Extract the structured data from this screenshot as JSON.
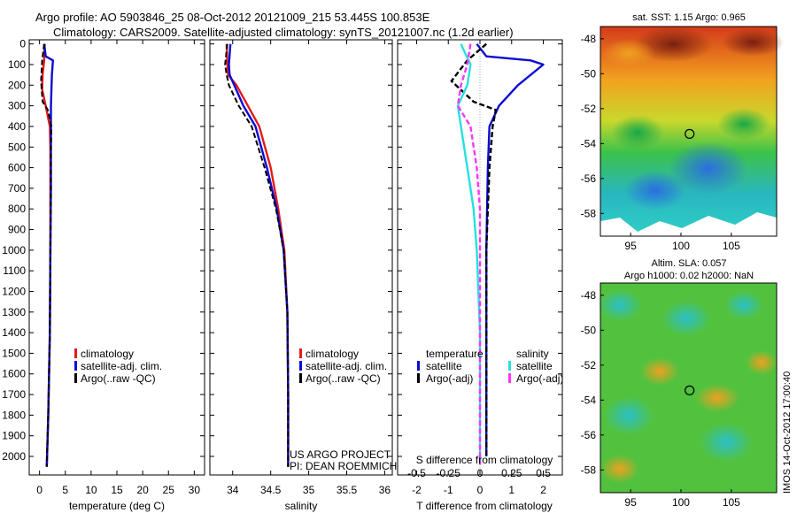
{
  "title_line1": "Argo profile: AO 5903846_25 08-Oct-2012 20121009_215 53.445S 100.853E",
  "title_line2": "Climatology: CARS2009. Satellite-adjusted climatology: synTS_20121007.nc (1.2d earlier)",
  "depth_ticks": [
    "0",
    "100",
    "200",
    "300",
    "400",
    "500",
    "600",
    "700",
    "800",
    "900",
    "1000",
    "1100",
    "1200",
    "1300",
    "1400",
    "1500",
    "1600",
    "1700",
    "1800",
    "1900",
    "2000"
  ],
  "colors": {
    "climatology": "#e41a1c",
    "satellite": "#0b0bd6",
    "argo": "#000000",
    "satellite_s": "#26e0e0",
    "argo_s": "#ff33ff"
  },
  "chart_data": [
    {
      "type": "line",
      "xlabel": "temperature (deg C)",
      "ylabel": "",
      "xlim": [
        -2,
        32
      ],
      "ylim": [
        2100,
        0
      ],
      "xticks": [
        "0",
        "5",
        "10",
        "15",
        "20",
        "25",
        "30"
      ],
      "legend": [
        "climatology",
        "satellite-adj. clim.",
        "Argo(..raw -QC)"
      ],
      "series": [
        {
          "name": "climatology",
          "x": [
            1.0,
            0.9,
            0.6,
            0.5,
            1.2,
            2.0,
            2.1,
            2.1,
            2.1,
            2.0,
            1.7,
            1.4
          ],
          "y": [
            0,
            80,
            150,
            220,
            300,
            400,
            500,
            700,
            1000,
            1400,
            1800,
            2050
          ]
        },
        {
          "name": "satellite-adj. clim.",
          "x": [
            0.9,
            1.2,
            2.6,
            2.4,
            2.2,
            2.2,
            2.2,
            2.2,
            2.1,
            2.0,
            1.7,
            1.4
          ],
          "y": [
            0,
            60,
            80,
            150,
            300,
            400,
            500,
            700,
            1000,
            1400,
            1800,
            2050
          ]
        },
        {
          "name": "Argo(..raw -QC)",
          "x": [
            0.9,
            0.5,
            0.3,
            0.6,
            1.6,
            2.3,
            2.2,
            2.2,
            2.1,
            2.0,
            1.7,
            1.4
          ],
          "y": [
            0,
            80,
            180,
            280,
            320,
            400,
            500,
            700,
            1000,
            1400,
            1800,
            2050
          ]
        }
      ]
    },
    {
      "type": "line",
      "xlabel": "salinity",
      "ylabel": "",
      "xlim": [
        33.7,
        36.1
      ],
      "ylim": [
        2100,
        0
      ],
      "xticks": [
        "34",
        "34.5",
        "35",
        "35.5",
        "36"
      ],
      "legend": [
        "climatology",
        "satellite-adj. clim.",
        "Argo(..raw -QC)"
      ],
      "annotation": [
        "US ARGO PROJECT",
        "PI: DEAN ROEMMICH"
      ],
      "series": [
        {
          "name": "climatology",
          "x": [
            33.92,
            33.93,
            33.94,
            34.05,
            34.2,
            34.35,
            34.5,
            34.6,
            34.68,
            34.72,
            34.73,
            34.73
          ],
          "y": [
            0,
            100,
            150,
            200,
            300,
            400,
            600,
            800,
            1000,
            1300,
            1700,
            2050
          ]
        },
        {
          "name": "satellite-adj. clim.",
          "x": [
            33.97,
            33.95,
            33.96,
            34.02,
            34.14,
            34.3,
            34.45,
            34.58,
            34.67,
            34.72,
            34.73,
            34.73
          ],
          "y": [
            0,
            100,
            150,
            200,
            300,
            400,
            600,
            800,
            1000,
            1300,
            1700,
            2050
          ]
        },
        {
          "name": "Argo(..raw -QC)",
          "x": [
            33.93,
            33.9,
            33.92,
            33.95,
            34.08,
            34.25,
            34.42,
            34.57,
            34.67,
            34.72,
            34.73,
            34.73
          ],
          "y": [
            0,
            100,
            150,
            200,
            300,
            400,
            600,
            800,
            1000,
            1300,
            1700,
            2050
          ]
        }
      ]
    },
    {
      "type": "line",
      "xlabel": "T difference from climatology",
      "xlabel_top": "S difference from climatology",
      "xlim": [
        -2.6,
        2.6
      ],
      "ylim": [
        2100,
        0
      ],
      "xticks": [
        "-2",
        "-1",
        "0",
        "1",
        "2"
      ],
      "xticks_s": [
        "-0.5",
        "-0.25",
        "0",
        "0.25",
        "0.5"
      ],
      "legend_temperature_title": "temperature",
      "legend_salinity_title": "salinity",
      "legend": [
        "satellite",
        "Argo(-adj)",
        "satellite",
        "Argo(-adj)"
      ],
      "series": [
        {
          "name": "satellite",
          "x": [
            -0.1,
            0.2,
            1.6,
            2.0,
            1.2,
            0.6,
            0.3,
            0.25,
            0.2,
            0.2,
            0.2,
            0.2
          ],
          "y": [
            0,
            60,
            80,
            100,
            200,
            300,
            400,
            600,
            1000,
            1400,
            1800,
            2000
          ]
        },
        {
          "name": "Argo(-adj)",
          "x": [
            0.2,
            -0.4,
            -0.9,
            -0.2,
            0.5,
            0.4,
            0.3,
            0.25,
            0.2,
            0.2,
            0.2,
            0.2
          ],
          "y": [
            0,
            80,
            180,
            280,
            320,
            400,
            600,
            800,
            1000,
            1400,
            1800,
            2000
          ]
        },
        {
          "name": "satellite",
          "x": [
            -0.6,
            -0.3,
            -0.4,
            -0.7,
            -0.6,
            -0.4,
            -0.2,
            -0.1,
            0.0,
            0.0,
            0.0,
            0.0
          ],
          "y": [
            0,
            100,
            200,
            300,
            400,
            600,
            800,
            1000,
            1400,
            1800,
            2000,
            2040
          ]
        },
        {
          "name": "Argo(-adj)",
          "x": [
            -0.3,
            -0.4,
            -0.6,
            -0.7,
            -0.3,
            -0.1,
            0.0,
            0.0,
            0.0,
            0.0,
            0.0,
            0.0
          ],
          "y": [
            0,
            100,
            200,
            300,
            400,
            600,
            800,
            1000,
            1400,
            1800,
            2000,
            2040
          ]
        }
      ]
    },
    {
      "type": "heatmap",
      "title": "sat. SST: 1.15  Argo: 0.965",
      "xticks": [
        "95",
        "100",
        "105"
      ],
      "yticks": [
        "-48",
        "-50",
        "-52",
        "-54",
        "-56",
        "-58"
      ],
      "xlim": [
        92,
        109.5
      ],
      "ylim": [
        -59.3,
        -47.3
      ],
      "marker": {
        "lon": 100.853,
        "lat": -53.445
      }
    },
    {
      "type": "heatmap",
      "title_line1": "Altim. SLA: 0.057",
      "title_line2": "Argo h1000: 0.02  h2000: NaN",
      "xticks": [
        "95",
        "100",
        "105"
      ],
      "yticks": [
        "-48",
        "-50",
        "-52",
        "-54",
        "-56",
        "-58"
      ],
      "xlim": [
        92,
        109.5
      ],
      "ylim": [
        -59.3,
        -47.3
      ],
      "marker": {
        "lon": 100.853,
        "lat": -53.445
      }
    }
  ],
  "footer": "IMOS 14-Oct-2012 17:00:40"
}
